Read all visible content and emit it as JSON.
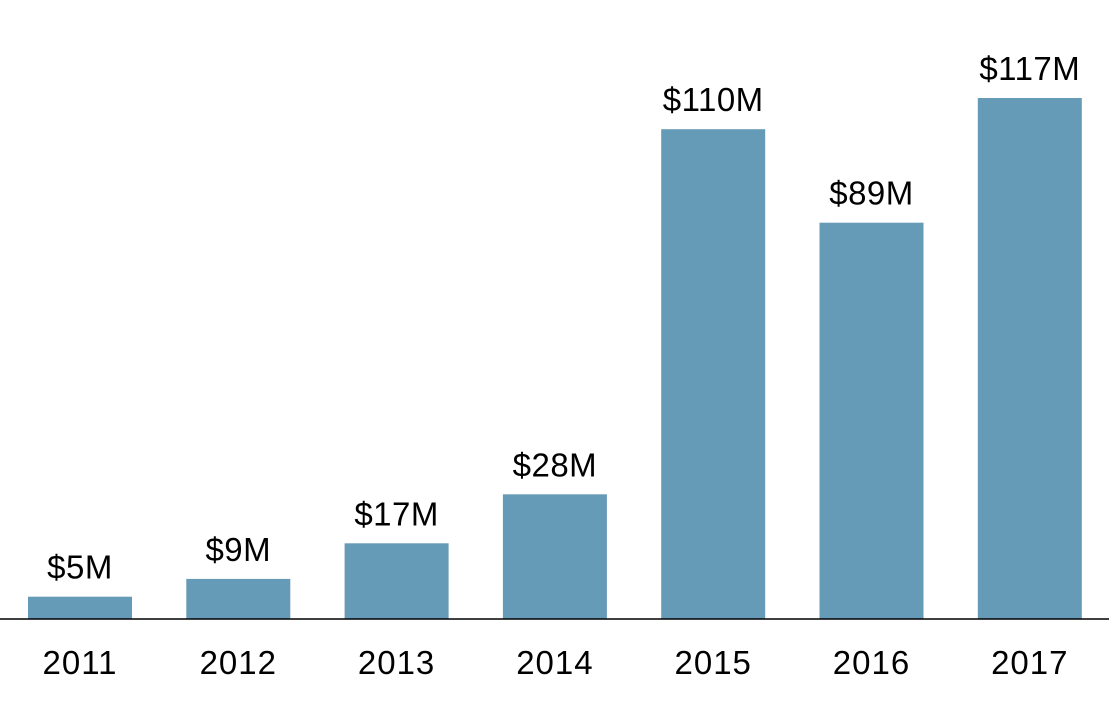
{
  "chart_data": {
    "type": "bar",
    "title": "",
    "xlabel": "",
    "ylabel": "",
    "categories": [
      "2011",
      "2012",
      "2013",
      "2014",
      "2015",
      "2016",
      "2017"
    ],
    "values": [
      5,
      9,
      17,
      28,
      110,
      89,
      117
    ],
    "data_labels": [
      "$5M",
      "$9M",
      "$17M",
      "$28M",
      "$110M",
      "$89M",
      "$117M"
    ],
    "ylim": [
      0,
      117
    ],
    "grid": false,
    "legend": "none",
    "bar_color": "#669bb7",
    "axis_color": "#000000"
  }
}
